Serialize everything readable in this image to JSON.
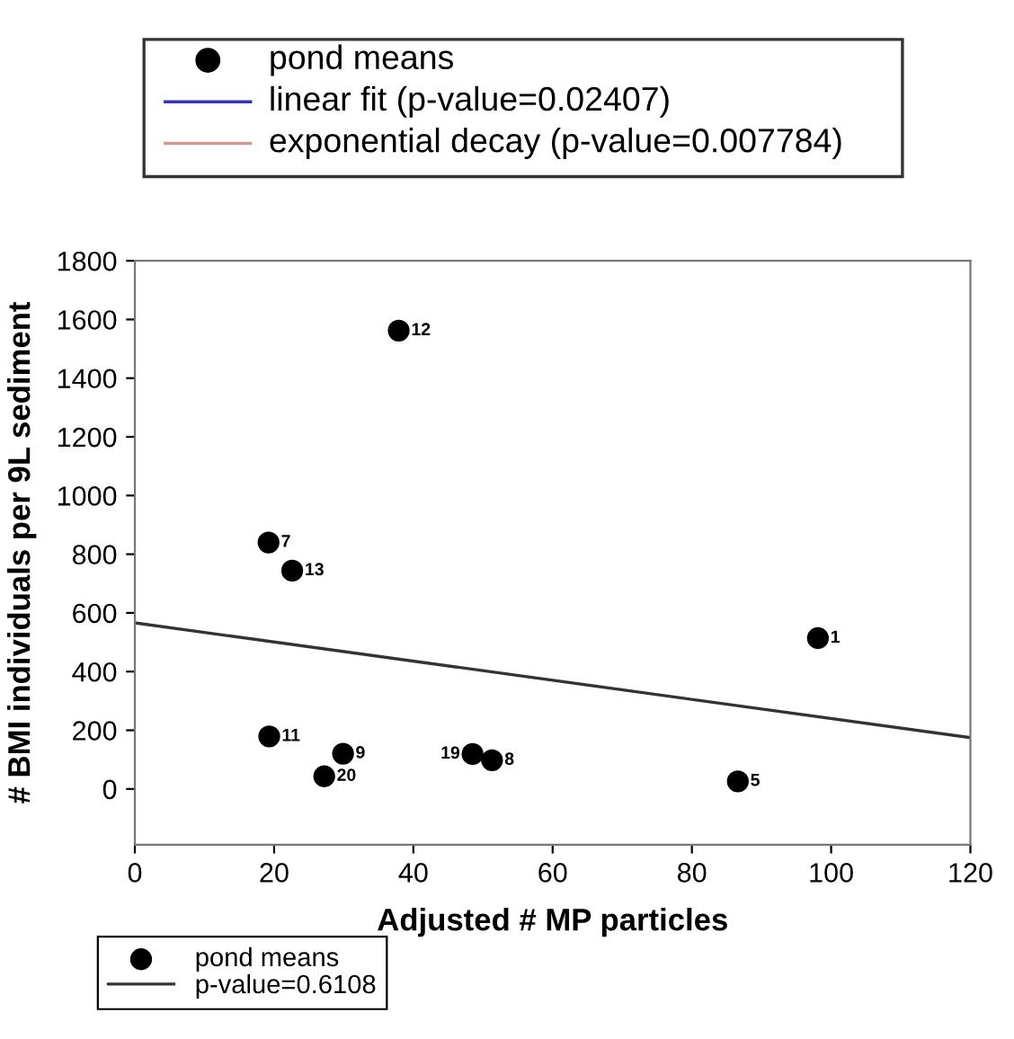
{
  "chart_data": {
    "type": "scatter",
    "xlabel": "Adjusted # MP particles",
    "ylabel": "# BMI individuals per 9L sediment",
    "xlim": [
      0,
      120
    ],
    "xticks": [
      0,
      20,
      40,
      60,
      80,
      100,
      120
    ],
    "ylim": [
      -190,
      1800
    ],
    "yticks": [
      0,
      200,
      400,
      600,
      800,
      1000,
      1200,
      1400,
      1600,
      1800
    ],
    "grid": false,
    "legend": "bottom left",
    "series": [
      {
        "name": "pond means",
        "type": "scatter",
        "marker": "circle",
        "color": "#000000",
        "x": [
          19.2,
          22.6,
          37.9,
          19.3,
          29.9,
          27.2,
          48.5,
          51.3,
          86.6,
          98.1
        ],
        "values": [
          840,
          744,
          1562,
          179,
          120,
          43,
          119,
          98,
          26,
          514
        ]
      },
      {
        "name": "p-value=0.6108",
        "type": "line",
        "color": "#333333",
        "line_style": "solid",
        "x": [
          0,
          120
        ],
        "values": [
          566,
          175
        ]
      }
    ],
    "annotations": [
      {
        "text": "7",
        "x": 19.2,
        "y": 840
      },
      {
        "text": "13",
        "x": 22.6,
        "y": 744
      },
      {
        "text": "12",
        "x": 37.9,
        "y": 1562
      },
      {
        "text": "11",
        "x": 19.3,
        "y": 179
      },
      {
        "text": "9",
        "x": 29.9,
        "y": 120
      },
      {
        "text": "20",
        "x": 27.2,
        "y": 43
      },
      {
        "text": "19",
        "x": 48.5,
        "y": 119
      },
      {
        "text": "8",
        "x": 51.3,
        "y": 98
      },
      {
        "text": "5",
        "x": 86.6,
        "y": 26
      },
      {
        "text": "1",
        "x": 98.1,
        "y": 514
      },
      "pond means",
      "linear fit (p-value=0.02407)",
      "exponential decay (p-value=0.007784)"
    ]
  }
}
